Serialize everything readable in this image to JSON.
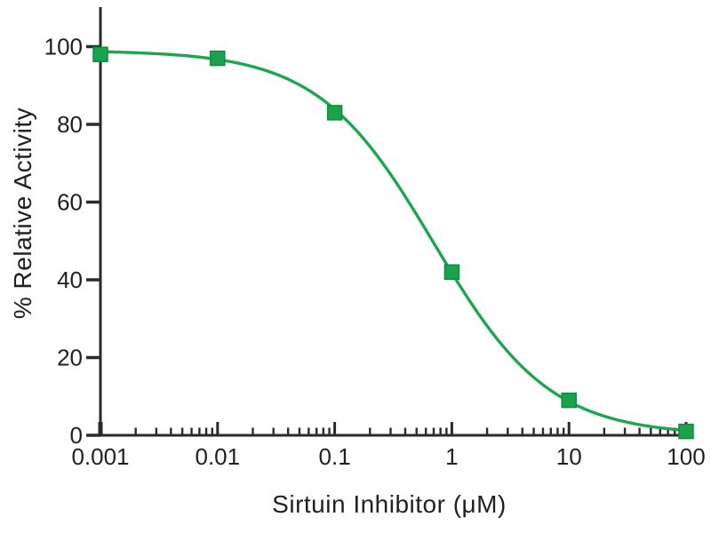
{
  "chart_data": {
    "type": "scatter",
    "subtype": "dose-response-curve",
    "title": "",
    "xlabel": "Sirtuin Inhibitor (μM)",
    "ylabel": "% Relative Activity",
    "x_scale": "log10",
    "x": [
      0.001,
      0.01,
      0.1,
      1,
      10,
      100
    ],
    "y": [
      98,
      97,
      83,
      42,
      9,
      1
    ],
    "x_tick_labels": [
      "0.001",
      "0.01",
      "0.1",
      "1",
      "10",
      "100"
    ],
    "x_ticks_log10": [
      -3,
      -2,
      -1,
      0,
      1,
      2
    ],
    "y_ticks": [
      0,
      20,
      40,
      60,
      80,
      100
    ],
    "ylim": [
      0,
      100
    ],
    "xlim_log10": [
      -3,
      2
    ],
    "grid": false,
    "legend": null,
    "marker_shape": "square",
    "curve_fit": {
      "model": "4PL",
      "top": 99,
      "bottom": 0,
      "ic50_uM": 0.7,
      "hill": 0.88
    },
    "colors": {
      "line": "#1ea551",
      "marker_fill": "#1aa34c",
      "marker_stroke": "#0e8c41",
      "axis": "#2b2a29",
      "text": "#231f20"
    }
  }
}
